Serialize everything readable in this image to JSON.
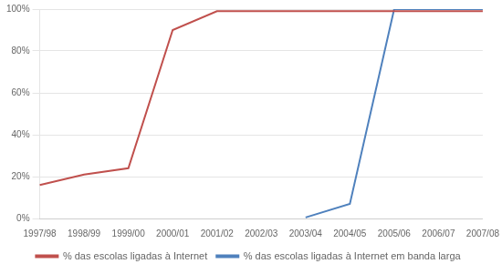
{
  "chart_data": {
    "type": "line",
    "categories": [
      "1997/98",
      "1998/99",
      "1999/00",
      "2000/01",
      "2001/02",
      "2002/03",
      "2003/04",
      "2004/05",
      "2005/06",
      "2006/07",
      "2007/08"
    ],
    "series": [
      {
        "name": "% das escolas ligadas à Internet",
        "color": "#c0504d",
        "values": [
          0.16,
          0.21,
          0.24,
          0.9,
          0.99,
          0.99,
          0.99,
          0.99,
          0.99,
          0.99,
          0.99
        ]
      },
      {
        "name": "% das escolas ligadas à Internet em banda larga",
        "color": "#4f81bd",
        "values": [
          null,
          null,
          null,
          null,
          null,
          null,
          0.005,
          0.07,
          1.0,
          1.0,
          1.0
        ]
      }
    ],
    "ylim": [
      0,
      1.0
    ],
    "yticks": [
      {
        "value": 0,
        "label": "0%"
      },
      {
        "value": 0.2,
        "label": "20%"
      },
      {
        "value": 0.4,
        "label": "40%"
      },
      {
        "value": 0.6,
        "label": "60%"
      },
      {
        "value": 0.8,
        "label": "80%"
      },
      {
        "value": 1.0,
        "label": "100%"
      }
    ],
    "grid": "y",
    "legend": "bottom"
  }
}
